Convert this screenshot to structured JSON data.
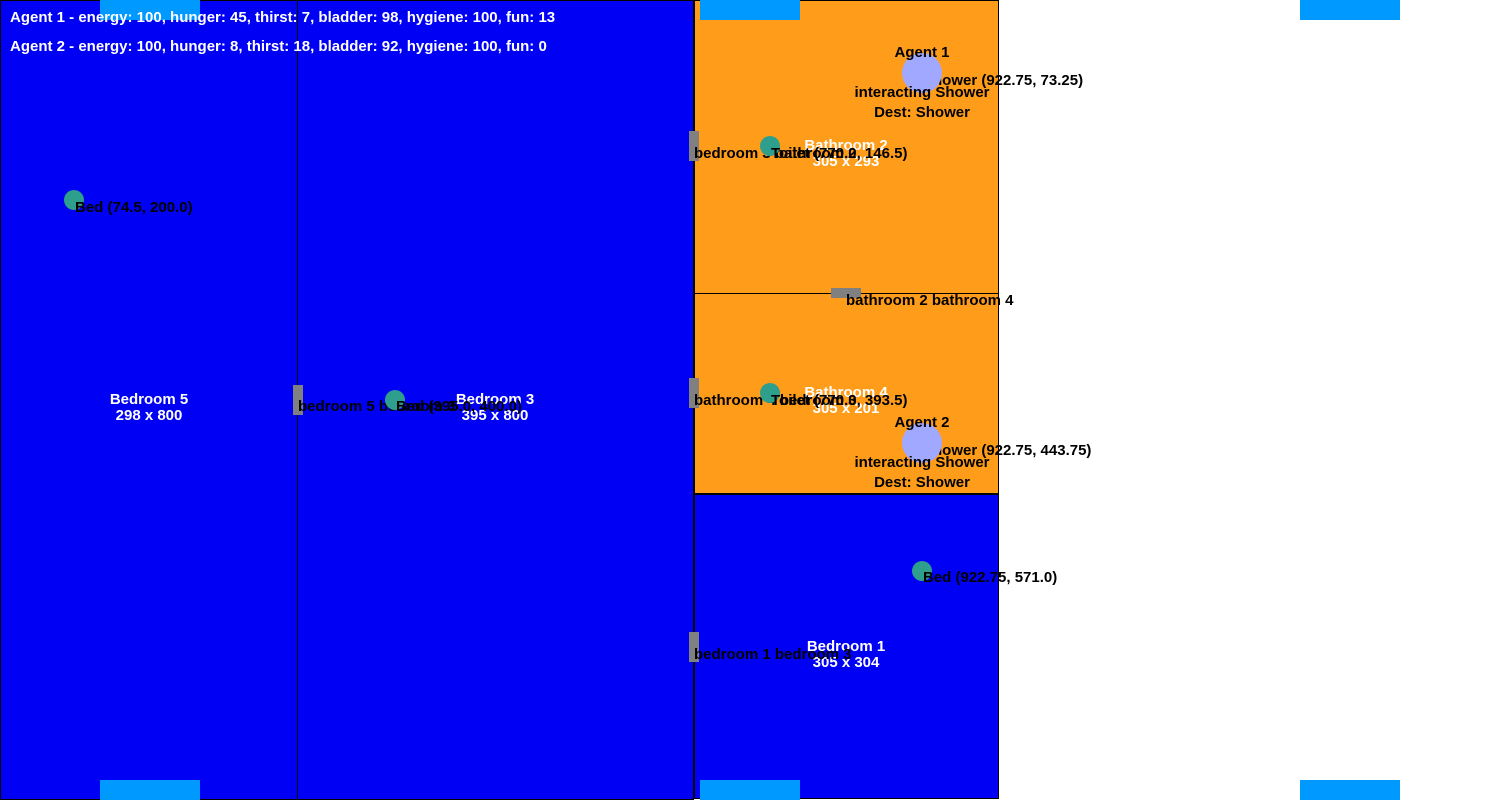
{
  "hud": {
    "agent1_stats": "Agent 1 - energy: 100, hunger: 45, thirst: 7, bladder: 98, hygiene: 100, fun: 13",
    "agent2_stats": "Agent 2 - energy: 100, hunger: 8, thirst: 18, bladder: 92, hygiene: 100, fun: 0"
  },
  "rooms": {
    "bedroom5": {
      "name": "Bedroom 5",
      "size": "298 x 800"
    },
    "bedroom3": {
      "name": "Bedroom 3",
      "size": "395 x 800"
    },
    "bathroom2": {
      "name": "Bathroom 2",
      "size": "305 x 293"
    },
    "bathroom4": {
      "name": "Bathroom 4",
      "size": "305 x 201"
    },
    "bedroom1": {
      "name": "Bedroom 1",
      "size": "305 x 304"
    }
  },
  "doors": {
    "bedroom5_bedroom3": "bedroom 5 bedroom 3",
    "bedroom3_bathroom2": "bedroom 3 bathroom 2",
    "bathroom2_bathroom4": "bathroom 2 bathroom 4",
    "bathroom4_bedroom3": "bathroom 4 bedroom 3",
    "bedroom1_bedroom3": "bedroom 1 bedroom 3"
  },
  "objects": {
    "bed_bedroom5": "Bed (74.5, 200.0)",
    "bed_bedroom3": "Bed (395.0, 400.0)",
    "toilet_bathroom2": "Toilet (770.0, 146.5)",
    "toilet_bathroom4": "Toilet (770.0, 393.5)",
    "shower_bathroom2": "Shower (922.75, 73.25)",
    "shower_bathroom4": "Shower (922.75, 443.75)",
    "bed_bedroom1": "Bed (922.75, 571.0)"
  },
  "agents": {
    "agent1": {
      "name": "Agent 1",
      "state": "interacting Shower",
      "dest": "Dest: Shower"
    },
    "agent2": {
      "name": "Agent 2",
      "state": "interacting Shower",
      "dest": "Dest: Shower"
    }
  },
  "colors": {
    "bedroom": "#0000f5",
    "bathroom": "#ff9c1a",
    "door": "#808080",
    "object": "#2e9f8c",
    "agent": "#a0a8ff",
    "strip": "#0099ff"
  }
}
